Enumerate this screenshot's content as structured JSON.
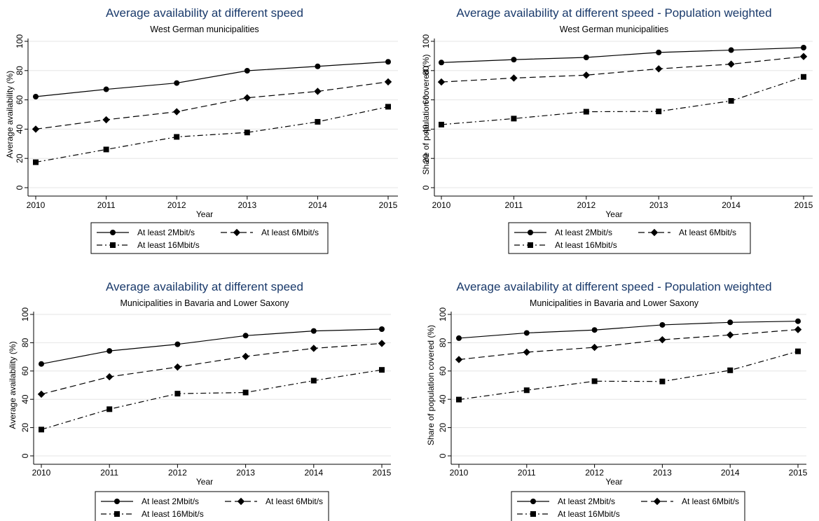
{
  "colors": {
    "title": "#1a3a6b",
    "line": "#000000",
    "grid": "#e6e6e6",
    "axis": "#000000",
    "background": "#ffffff"
  },
  "legend_labels": [
    "At least 2Mbit/s",
    "At least 6Mbit/s",
    "At least 16Mbit/s"
  ],
  "chart_data": [
    {
      "type": "line",
      "title": "Average availability at different speed",
      "subtitle": "West German municipalities",
      "xlabel": "Year",
      "ylabel": "Average availability (%)",
      "x": [
        2010,
        2011,
        2012,
        2013,
        2014,
        2015
      ],
      "ylim": [
        0,
        100
      ],
      "yticks": [
        0,
        20,
        40,
        60,
        80,
        100
      ],
      "grid": true,
      "legend_position": "bottom",
      "series": [
        {
          "name": "At least 2Mbit/s",
          "marker": "circle",
          "dash": "solid",
          "values": [
            62.2,
            67.2,
            71.5,
            79.9,
            82.9,
            86.0
          ]
        },
        {
          "name": "At least 6Mbit/s",
          "marker": "diamond",
          "dash": "dashed",
          "values": [
            40.0,
            46.4,
            51.9,
            61.4,
            65.8,
            72.3
          ]
        },
        {
          "name": "At least 16Mbit/s",
          "marker": "square",
          "dash": "dashdot",
          "values": [
            17.4,
            26.1,
            34.7,
            37.7,
            45.0,
            55.3
          ]
        }
      ]
    },
    {
      "type": "line",
      "title": "Average availability at different speed - Population weighted",
      "subtitle": "West German municipalities",
      "xlabel": "Year",
      "ylabel": "Share of population covered (%)",
      "x": [
        2010,
        2011,
        2012,
        2013,
        2014,
        2015
      ],
      "ylim": [
        0,
        100
      ],
      "yticks": [
        0,
        20,
        40,
        60,
        80,
        100
      ],
      "grid": true,
      "legend_position": "bottom",
      "series": [
        {
          "name": "At least 2Mbit/s",
          "marker": "circle",
          "dash": "solid",
          "values": [
            85.5,
            87.5,
            89.0,
            92.4,
            94.0,
            95.7
          ]
        },
        {
          "name": "At least 6Mbit/s",
          "marker": "diamond",
          "dash": "dashed",
          "values": [
            72.2,
            74.9,
            76.9,
            81.2,
            84.4,
            89.6
          ]
        },
        {
          "name": "At least 16Mbit/s",
          "marker": "square",
          "dash": "dashdot",
          "values": [
            43.1,
            47.2,
            51.9,
            52.1,
            59.3,
            75.7
          ]
        }
      ]
    },
    {
      "type": "line",
      "title": "Average availability at different speed",
      "subtitle": "Municipalities in Bavaria and Lower Saxony",
      "xlabel": "Year",
      "ylabel": "Average availability (%)",
      "x": [
        2010,
        2011,
        2012,
        2013,
        2014,
        2015
      ],
      "ylim": [
        0,
        100
      ],
      "yticks": [
        0,
        20,
        40,
        60,
        80,
        100
      ],
      "grid": true,
      "legend_position": "bottom",
      "series": [
        {
          "name": "At least 2Mbit/s",
          "marker": "circle",
          "dash": "solid",
          "values": [
            65.0,
            74.2,
            78.9,
            85.0,
            88.3,
            89.6
          ]
        },
        {
          "name": "At least 6Mbit/s",
          "marker": "diamond",
          "dash": "dashed",
          "values": [
            43.6,
            55.9,
            62.8,
            70.3,
            76.0,
            79.5
          ]
        },
        {
          "name": "At least 16Mbit/s",
          "marker": "square",
          "dash": "dashdot",
          "values": [
            18.6,
            33.0,
            44.0,
            44.8,
            53.2,
            60.8
          ]
        }
      ]
    },
    {
      "type": "line",
      "title": "Average availability at different speed - Population weighted",
      "subtitle": "Municipalities in Bavaria and Lower Saxony",
      "xlabel": "Year",
      "ylabel": "Share of population covered (%)",
      "x": [
        2010,
        2011,
        2012,
        2013,
        2014,
        2015
      ],
      "ylim": [
        0,
        100
      ],
      "yticks": [
        0,
        20,
        40,
        60,
        80,
        100
      ],
      "grid": true,
      "legend_position": "bottom",
      "series": [
        {
          "name": "At least 2Mbit/s",
          "marker": "circle",
          "dash": "solid",
          "values": [
            83.2,
            86.9,
            89.0,
            92.6,
            94.4,
            95.2
          ]
        },
        {
          "name": "At least 6Mbit/s",
          "marker": "diamond",
          "dash": "dashed",
          "values": [
            68.1,
            73.3,
            76.7,
            82.1,
            85.5,
            89.3
          ]
        },
        {
          "name": "At least 16Mbit/s",
          "marker": "square",
          "dash": "dashdot",
          "values": [
            39.8,
            46.4,
            52.8,
            52.6,
            60.5,
            73.9
          ]
        }
      ]
    }
  ]
}
